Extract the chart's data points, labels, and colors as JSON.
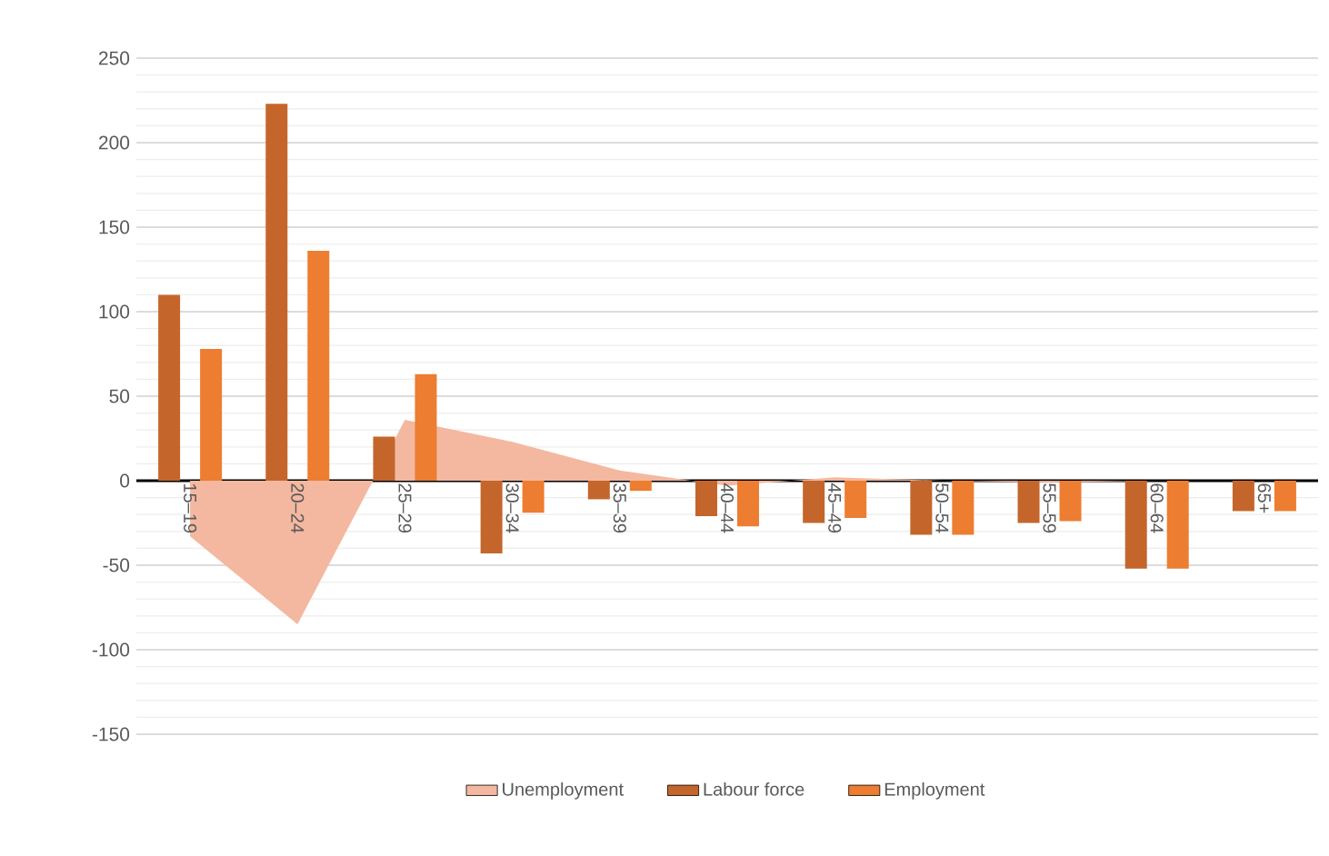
{
  "chart_data": {
    "type": "bar",
    "categories": [
      "15–19",
      "20–24",
      "25–29",
      "30–34",
      "35–39",
      "40–44",
      "45–49",
      "50–54",
      "55–59",
      "60–64",
      "65+"
    ],
    "series": [
      {
        "name": "Unemployment",
        "type": "area",
        "color": "#f4b8a0",
        "values": [
          -33,
          -85,
          36,
          23,
          6,
          -3,
          2,
          0,
          -1,
          0,
          0
        ]
      },
      {
        "name": "Labour force",
        "color": "#c4662b",
        "values": [
          110,
          223,
          26,
          -43,
          -11,
          -21,
          -25,
          -32,
          -25,
          -52,
          -18
        ]
      },
      {
        "name": "Employment",
        "color": "#ed7d31",
        "values": [
          78,
          136,
          63,
          -19,
          -6,
          -27,
          -22,
          -32,
          -24,
          -52,
          -18
        ]
      }
    ],
    "ylim": [
      -150,
      250
    ],
    "yticks": [
      -150,
      -100,
      -50,
      0,
      50,
      100,
      150,
      200,
      250
    ],
    "grid": "y",
    "legend": "bottom"
  }
}
